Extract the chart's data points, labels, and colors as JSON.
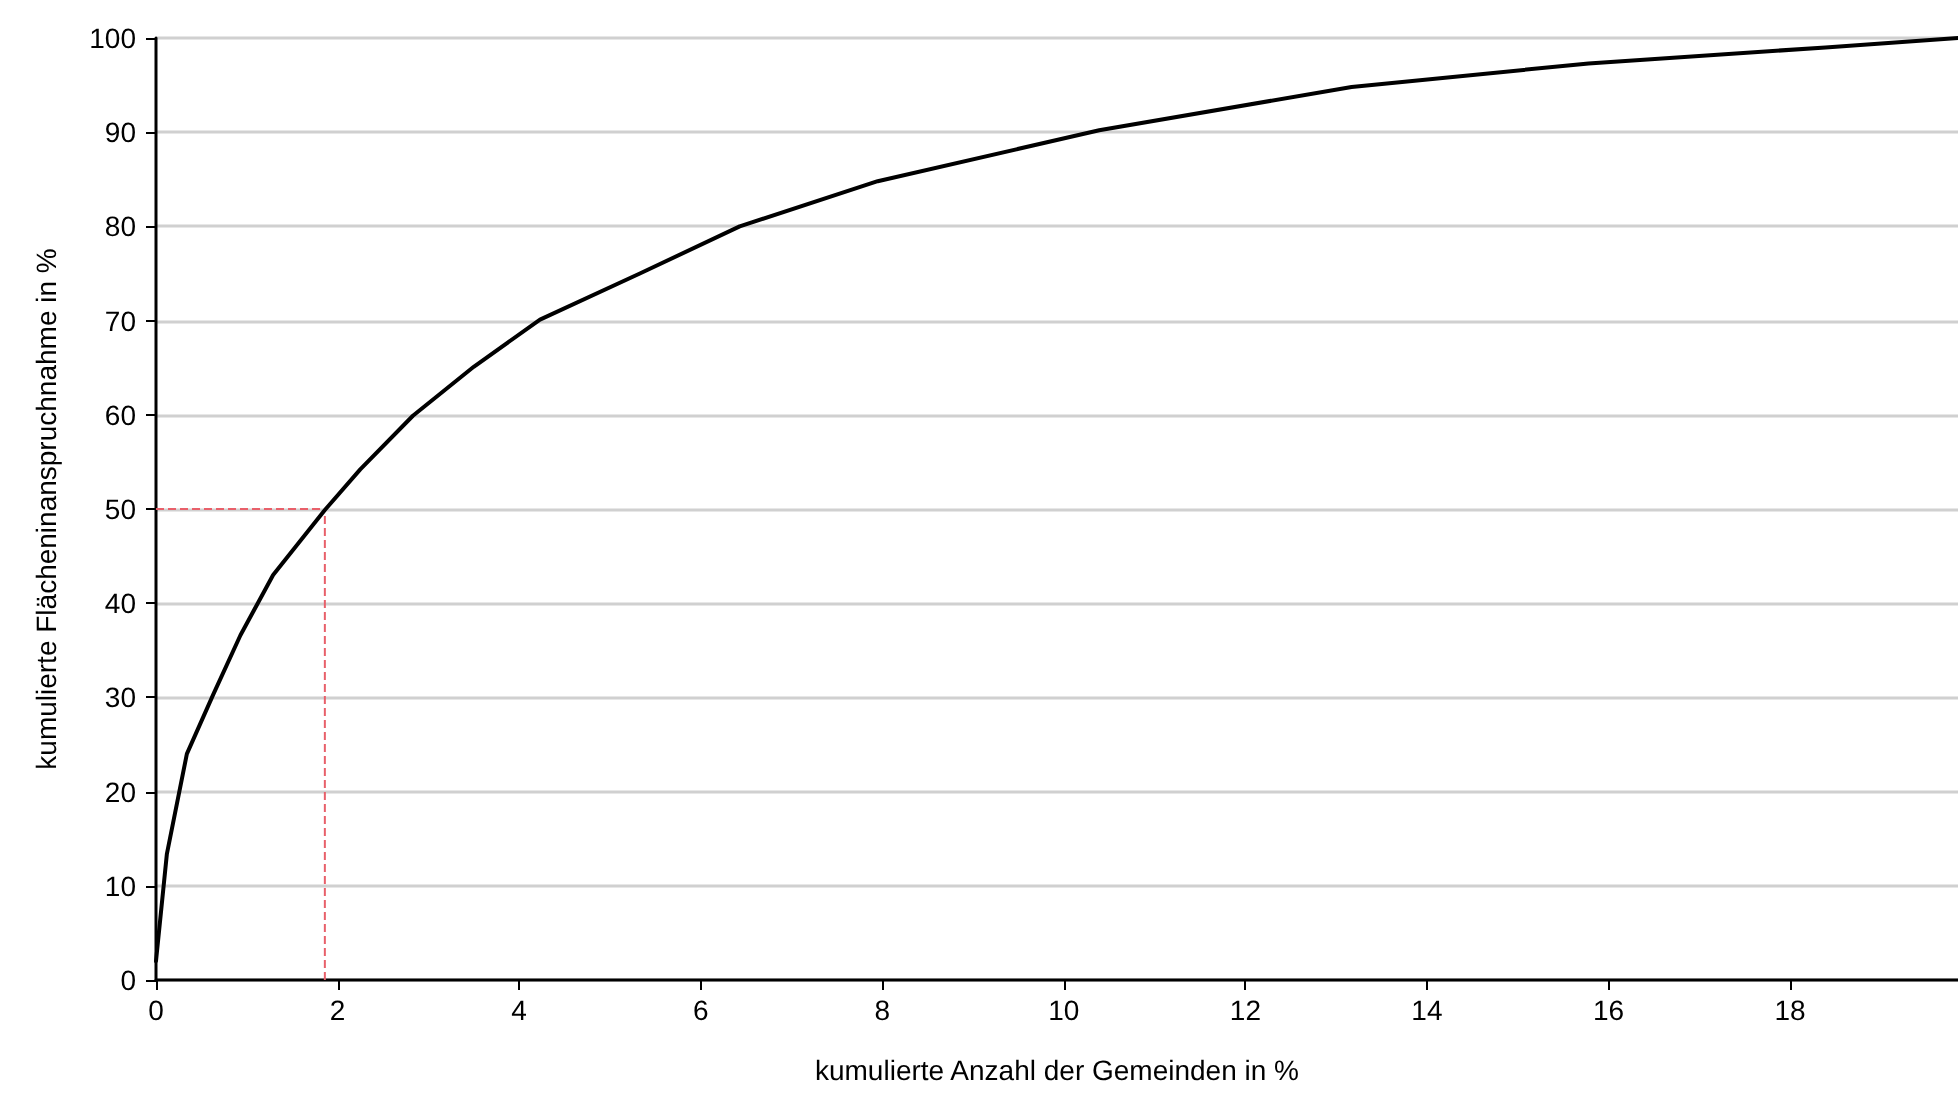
{
  "chart_data": {
    "type": "line",
    "xlabel": "kumulierte Anzahl der Gemeinden in %",
    "ylabel": "kumulierte Flächeninanspruchnahme in %",
    "xlim": [
      0,
      19.85
    ],
    "xticks": [
      0,
      2,
      4,
      6,
      8,
      10,
      12,
      14,
      16,
      18
    ],
    "ylim": [
      0,
      100
    ],
    "yticks": [
      0,
      10,
      20,
      30,
      40,
      50,
      60,
      70,
      80,
      90,
      100
    ],
    "grid": "y",
    "marker": "none",
    "line_style": "solid",
    "x": [
      0,
      0.12,
      0.34,
      0.63,
      0.93,
      1.29,
      1.86,
      2.25,
      2.83,
      3.5,
      4.23,
      5.33,
      6.43,
      7.95,
      10.39,
      13.17,
      15.78,
      18.39,
      19.85
    ],
    "series": [
      {
        "color": "#000000",
        "values": [
          2,
          13.4,
          24,
          30.3,
          36.6,
          43,
          49.9,
          54.2,
          59.9,
          65.1,
          70.1,
          75,
          80,
          84.8,
          90.2,
          94.8,
          97.3,
          99,
          100
        ]
      }
    ],
    "ref_lines": [
      {
        "axis": "y",
        "value": 50,
        "color": "#e8606a",
        "line_style": "dashed"
      },
      {
        "axis": "x",
        "value": 1.86,
        "color": "#e8606a",
        "line_style": "dashed"
      }
    ]
  }
}
